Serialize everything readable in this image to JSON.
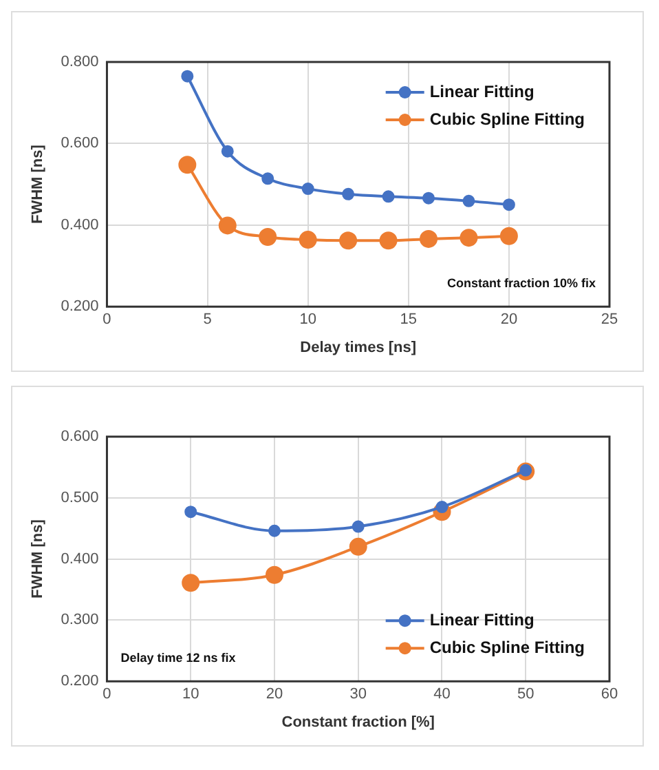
{
  "chart_data": [
    {
      "type": "line",
      "xlabel": "Delay times [ns]",
      "ylabel": "FWHM [ns]",
      "annotations": [
        "Constant fraction 10% fix"
      ],
      "x": [
        4,
        6,
        8,
        10,
        12,
        14,
        16,
        18,
        20
      ],
      "series": [
        {
          "name": "Linear Fitting",
          "color": "#4472c4",
          "values": [
            0.765,
            0.581,
            0.514,
            0.489,
            0.476,
            0.47,
            0.466,
            0.459,
            0.45
          ]
        },
        {
          "name": "Cubic Spline Fitting",
          "color": "#ed7d31",
          "values": [
            0.548,
            0.399,
            0.371,
            0.364,
            0.362,
            0.362,
            0.366,
            0.369,
            0.373
          ]
        }
      ],
      "xlim": [
        0,
        25
      ],
      "xticks": [
        0,
        5,
        10,
        15,
        20,
        25
      ],
      "ylim": [
        0.2,
        0.8
      ],
      "yticks": [
        {
          "value": 0.2,
          "label": "0.200"
        },
        {
          "value": 0.4,
          "label": "0.400"
        },
        {
          "value": 0.6,
          "label": "0.600"
        },
        {
          "value": 0.8,
          "label": "0.800"
        }
      ],
      "grid": true,
      "legend": "top right",
      "marker": "circle",
      "line_style": "solid"
    },
    {
      "type": "line",
      "xlabel": "Constant fraction [%]",
      "ylabel": "FWHM [ns]",
      "annotations": [
        "Delay time 12 ns fix"
      ],
      "x": [
        10,
        20,
        30,
        40,
        50
      ],
      "series": [
        {
          "name": "Linear Fitting",
          "color": "#4472c4",
          "values": [
            0.477,
            0.446,
            0.453,
            0.485,
            0.545
          ]
        },
        {
          "name": "Cubic Spline Fitting",
          "color": "#ed7d31",
          "values": [
            0.361,
            0.374,
            0.42,
            0.477,
            0.543
          ]
        }
      ],
      "xlim": [
        0,
        60
      ],
      "xticks": [
        0,
        10,
        20,
        30,
        40,
        50,
        60
      ],
      "ylim": [
        0.2,
        0.6
      ],
      "yticks": [
        {
          "value": 0.2,
          "label": "0.200"
        },
        {
          "value": 0.3,
          "label": "0.300"
        },
        {
          "value": 0.4,
          "label": "0.400"
        },
        {
          "value": 0.5,
          "label": "0.500"
        },
        {
          "value": 0.6,
          "label": "0.600"
        }
      ],
      "grid": true,
      "legend": "bottom right",
      "marker": "circle",
      "line_style": "solid"
    }
  ]
}
